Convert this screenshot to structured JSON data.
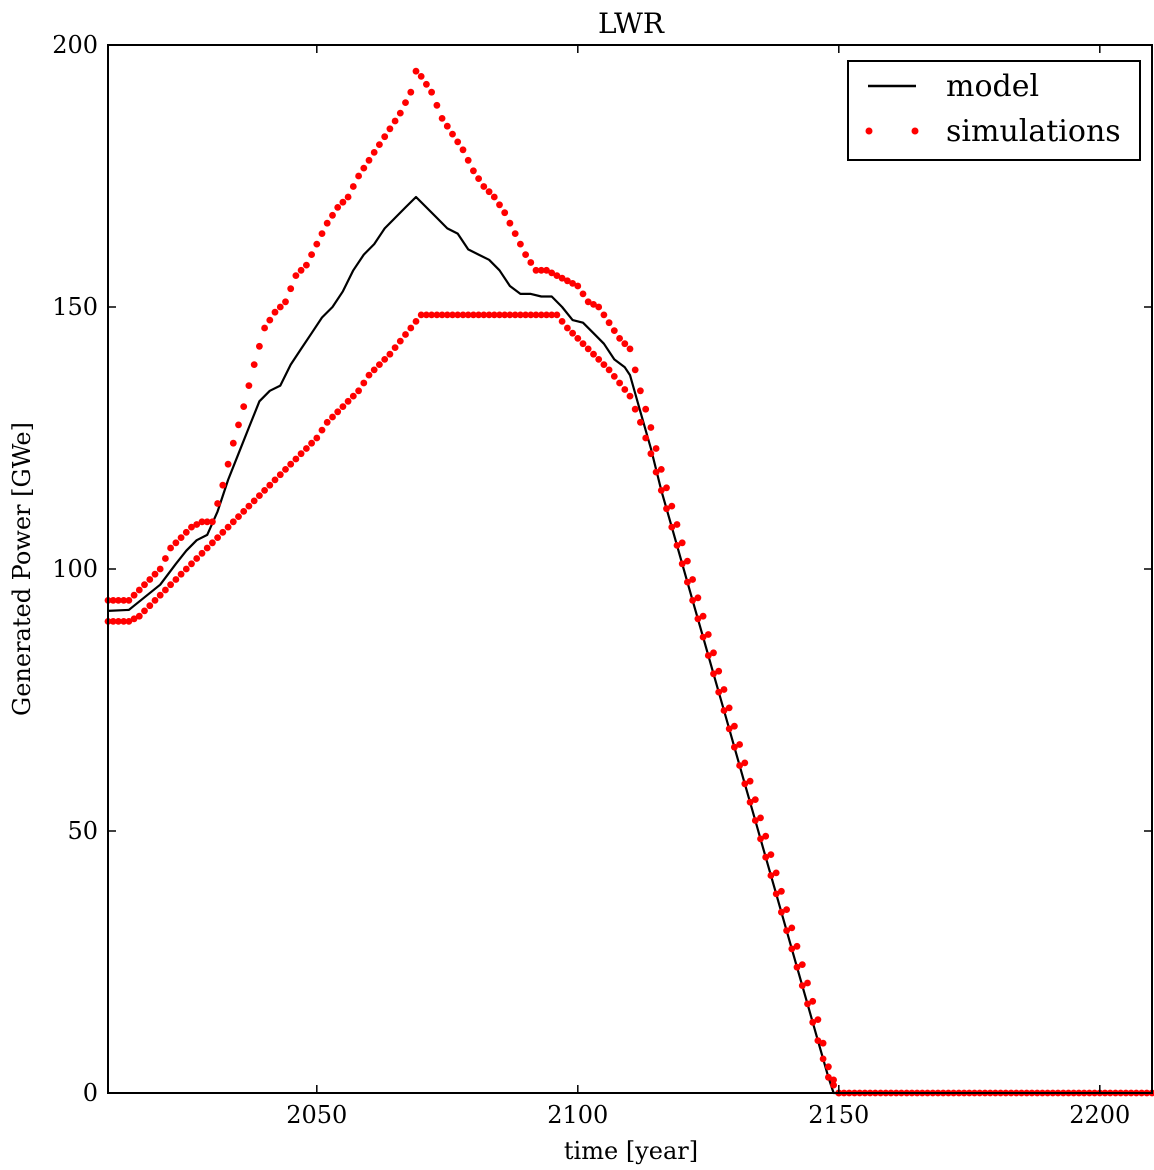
{
  "chart_data": {
    "type": "line",
    "title": "LWR",
    "xlabel": "time [year]",
    "ylabel": "Generated Power [GWe]",
    "xlim": [
      2010,
      2210
    ],
    "ylim": [
      0,
      200
    ],
    "xticks": [
      2050,
      2100,
      2150,
      2200
    ],
    "yticks": [
      0,
      50,
      100,
      150,
      200
    ],
    "grid": false,
    "legend": {
      "position": "top-right",
      "entries": [
        "model",
        "simulations"
      ]
    },
    "colors": {
      "model": "#000000",
      "simulations": "#ff0000"
    },
    "series": [
      {
        "name": "model",
        "style": "line",
        "points": [
          [
            2010,
            92
          ],
          [
            2014,
            92.2
          ],
          [
            2015,
            93
          ],
          [
            2020,
            97
          ],
          [
            2023,
            101
          ],
          [
            2025,
            103.5
          ],
          [
            2027,
            105.5
          ],
          [
            2029,
            106.5
          ],
          [
            2031,
            111
          ],
          [
            2033,
            117
          ],
          [
            2035,
            122
          ],
          [
            2037,
            127
          ],
          [
            2039,
            132
          ],
          [
            2041,
            134
          ],
          [
            2043,
            135
          ],
          [
            2045,
            139
          ],
          [
            2047,
            142
          ],
          [
            2049,
            145
          ],
          [
            2051,
            148
          ],
          [
            2053,
            150
          ],
          [
            2055,
            153
          ],
          [
            2057,
            157
          ],
          [
            2059,
            160
          ],
          [
            2061,
            162
          ],
          [
            2063,
            165
          ],
          [
            2065,
            167
          ],
          [
            2067,
            169
          ],
          [
            2069,
            171
          ],
          [
            2071,
            169
          ],
          [
            2073,
            167
          ],
          [
            2075,
            165
          ],
          [
            2077,
            164
          ],
          [
            2079,
            161
          ],
          [
            2081,
            160
          ],
          [
            2083,
            159
          ],
          [
            2085,
            157
          ],
          [
            2087,
            154
          ],
          [
            2089,
            152.5
          ],
          [
            2091,
            152.5
          ],
          [
            2093,
            152
          ],
          [
            2095,
            152
          ],
          [
            2097,
            150
          ],
          [
            2099,
            147.5
          ],
          [
            2101,
            147
          ],
          [
            2103,
            145
          ],
          [
            2105,
            143
          ],
          [
            2107,
            140
          ],
          [
            2109,
            138.5
          ],
          [
            2110,
            137
          ],
          [
            2112,
            130
          ],
          [
            2114,
            123
          ],
          [
            2116,
            115
          ],
          [
            2118,
            108
          ],
          [
            2120,
            101
          ],
          [
            2122,
            94
          ],
          [
            2124,
            87
          ],
          [
            2126,
            80
          ],
          [
            2128,
            73
          ],
          [
            2130,
            66
          ],
          [
            2132,
            59
          ],
          [
            2134,
            52
          ],
          [
            2136,
            45
          ],
          [
            2138,
            38
          ],
          [
            2140,
            31
          ],
          [
            2142,
            24
          ],
          [
            2144,
            17
          ],
          [
            2146,
            10
          ],
          [
            2148,
            3
          ],
          [
            2149,
            0
          ],
          [
            2210,
            0
          ]
        ]
      },
      {
        "name": "simulations",
        "style": "markers",
        "values_upper": [
          [
            2010,
            94
          ],
          [
            2012,
            94
          ],
          [
            2014,
            94
          ],
          [
            2016,
            96
          ],
          [
            2018,
            98
          ],
          [
            2020,
            100
          ],
          [
            2022,
            104
          ],
          [
            2024,
            106
          ],
          [
            2026,
            108
          ],
          [
            2028,
            109
          ],
          [
            2030,
            109
          ],
          [
            2032,
            116
          ],
          [
            2034,
            124
          ],
          [
            2036,
            131
          ],
          [
            2038,
            139
          ],
          [
            2040,
            146
          ],
          [
            2042,
            149
          ],
          [
            2044,
            151
          ],
          [
            2046,
            156
          ],
          [
            2048,
            158
          ],
          [
            2050,
            162
          ],
          [
            2052,
            166
          ],
          [
            2054,
            169
          ],
          [
            2056,
            171
          ],
          [
            2058,
            175
          ],
          [
            2060,
            178
          ],
          [
            2062,
            181
          ],
          [
            2064,
            184
          ],
          [
            2066,
            187
          ],
          [
            2068,
            191
          ],
          [
            2069,
            195
          ],
          [
            2070,
            194
          ],
          [
            2072,
            191
          ],
          [
            2074,
            186
          ],
          [
            2076,
            183
          ],
          [
            2078,
            180
          ],
          [
            2080,
            176
          ],
          [
            2082,
            173
          ],
          [
            2084,
            171
          ],
          [
            2086,
            168
          ],
          [
            2088,
            164
          ],
          [
            2090,
            160
          ],
          [
            2092,
            157
          ],
          [
            2094,
            157
          ],
          [
            2096,
            156
          ],
          [
            2098,
            155
          ],
          [
            2100,
            154
          ],
          [
            2102,
            151
          ],
          [
            2104,
            150
          ],
          [
            2106,
            147
          ],
          [
            2108,
            144
          ],
          [
            2110,
            142
          ],
          [
            2112,
            134
          ],
          [
            2114,
            127
          ],
          [
            2116,
            119
          ],
          [
            2118,
            112
          ],
          [
            2120,
            105
          ],
          [
            2122,
            98
          ],
          [
            2124,
            91
          ],
          [
            2126,
            84
          ],
          [
            2128,
            77
          ],
          [
            2130,
            70
          ],
          [
            2132,
            63
          ],
          [
            2134,
            56
          ],
          [
            2136,
            49
          ],
          [
            2138,
            42
          ],
          [
            2140,
            35
          ],
          [
            2142,
            28
          ],
          [
            2144,
            21
          ],
          [
            2146,
            14
          ],
          [
            2148,
            5
          ],
          [
            2150,
            0
          ]
        ],
        "values_lower": [
          [
            2010,
            90
          ],
          [
            2012,
            90
          ],
          [
            2014,
            90
          ],
          [
            2016,
            91
          ],
          [
            2018,
            93
          ],
          [
            2020,
            95
          ],
          [
            2022,
            97
          ],
          [
            2024,
            99
          ],
          [
            2026,
            101
          ],
          [
            2028,
            103
          ],
          [
            2030,
            105
          ],
          [
            2032,
            107
          ],
          [
            2034,
            109
          ],
          [
            2036,
            111
          ],
          [
            2038,
            113
          ],
          [
            2040,
            115
          ],
          [
            2042,
            117
          ],
          [
            2044,
            119
          ],
          [
            2046,
            121
          ],
          [
            2048,
            123
          ],
          [
            2050,
            125
          ],
          [
            2052,
            128
          ],
          [
            2054,
            130
          ],
          [
            2056,
            132
          ],
          [
            2058,
            134
          ],
          [
            2060,
            137
          ],
          [
            2062,
            139
          ],
          [
            2064,
            141
          ],
          [
            2066,
            143.5
          ],
          [
            2068,
            146
          ],
          [
            2070,
            148.5
          ],
          [
            2072,
            148.5
          ],
          [
            2074,
            148.5
          ],
          [
            2076,
            148.5
          ],
          [
            2078,
            148.5
          ],
          [
            2080,
            148.5
          ],
          [
            2082,
            148.5
          ],
          [
            2084,
            148.5
          ],
          [
            2086,
            148.5
          ],
          [
            2088,
            148.5
          ],
          [
            2090,
            148.5
          ],
          [
            2092,
            148.5
          ],
          [
            2094,
            148.5
          ],
          [
            2096,
            148.5
          ],
          [
            2098,
            146
          ],
          [
            2100,
            144
          ],
          [
            2102,
            142
          ],
          [
            2104,
            140
          ],
          [
            2106,
            138
          ],
          [
            2108,
            135.5
          ],
          [
            2110,
            133
          ],
          [
            2112,
            128
          ],
          [
            2114,
            122
          ],
          [
            2116,
            115
          ],
          [
            2118,
            108
          ],
          [
            2120,
            101
          ],
          [
            2122,
            94
          ],
          [
            2124,
            87
          ],
          [
            2126,
            80
          ],
          [
            2128,
            73
          ],
          [
            2130,
            66
          ],
          [
            2132,
            59
          ],
          [
            2134,
            52
          ],
          [
            2136,
            45
          ],
          [
            2138,
            38
          ],
          [
            2140,
            31
          ],
          [
            2142,
            24
          ],
          [
            2144,
            17
          ],
          [
            2146,
            10
          ],
          [
            2148,
            3
          ],
          [
            2150,
            0
          ],
          [
            2160,
            0
          ],
          [
            2170,
            0
          ],
          [
            2180,
            0
          ],
          [
            2190,
            0
          ],
          [
            2200,
            0
          ],
          [
            2210,
            0
          ]
        ]
      }
    ]
  }
}
